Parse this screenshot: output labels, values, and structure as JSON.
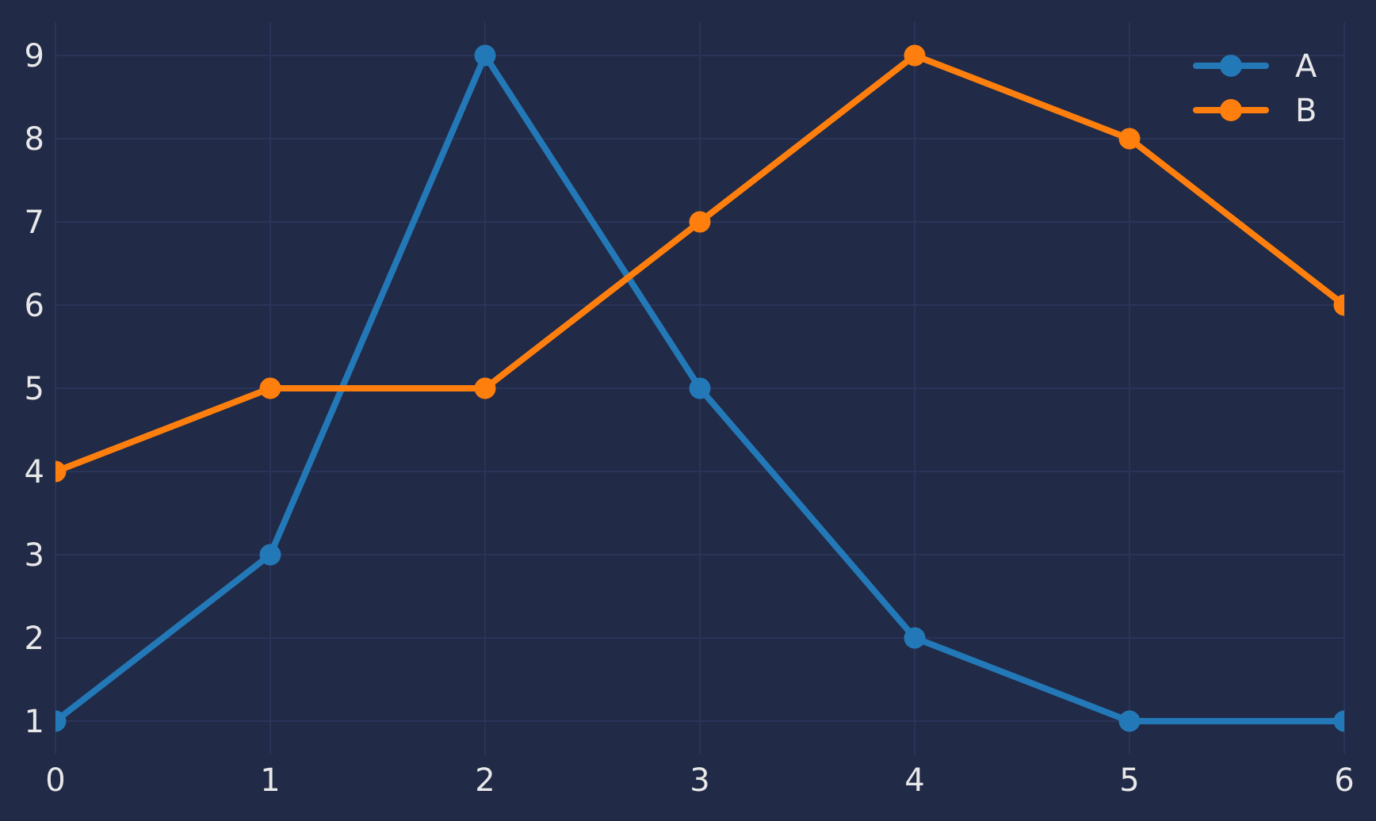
{
  "chart_data": {
    "type": "line",
    "title": "",
    "xlabel": "",
    "ylabel": "",
    "x": [
      0,
      1,
      2,
      3,
      4,
      5,
      6
    ],
    "series": [
      {
        "name": "A",
        "color": "#2379b8",
        "values": [
          1,
          3,
          9,
          5,
          2,
          1,
          1
        ]
      },
      {
        "name": "B",
        "color": "#ff7f0e",
        "values": [
          4,
          5,
          5,
          7,
          9,
          8,
          6
        ]
      }
    ],
    "xlim": [
      0,
      6
    ],
    "ylim": [
      0.6,
      9.4
    ],
    "xticks": [
      0,
      1,
      2,
      3,
      4,
      5,
      6
    ],
    "yticks": [
      1,
      2,
      3,
      4,
      5,
      6,
      7,
      8,
      9
    ],
    "grid": true,
    "legend": {
      "position": "upper-right",
      "frame": false,
      "entries": [
        "A",
        "B"
      ]
    }
  },
  "style": {
    "background": "#212a46",
    "grid_color": "#2a3459",
    "text_color": "#e8e8ea",
    "line_width": 8,
    "marker_radius": 13.5,
    "legend_marker_radius": 14,
    "tick_font_size": 40,
    "legend_font_size": 40
  }
}
